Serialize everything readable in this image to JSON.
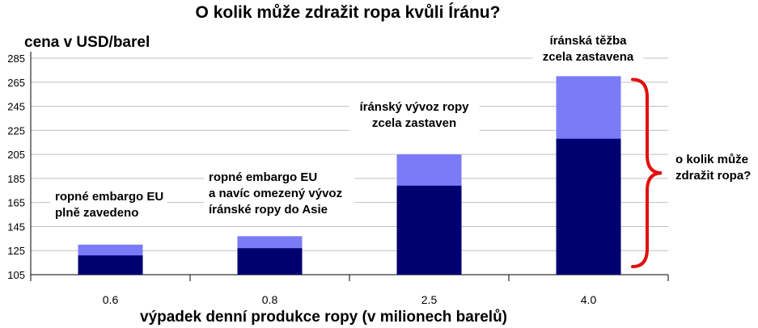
{
  "chart_data": {
    "type": "bar",
    "title": "O kolik může zdražit ropa kvůli Íránu?",
    "ylabel": "cena v USD/barel",
    "xlabel": "výpadek denní produkce ropy (v milionech barelů)",
    "categories": [
      "0.6",
      "0.8",
      "2.5",
      "4.0"
    ],
    "series": [
      {
        "values": [
          121,
          127,
          179,
          218
        ]
      },
      {
        "values": [
          130,
          137,
          205,
          270
        ]
      }
    ],
    "stacked_overlay": true,
    "ylim": [
      105,
      285
    ],
    "yticks": [
      105,
      125,
      145,
      165,
      185,
      205,
      225,
      245,
      265,
      285
    ],
    "grid": true,
    "annotations": [
      {
        "category": "0.6",
        "lines": [
          "ropné embargo EU",
          "plně zavedeno"
        ]
      },
      {
        "category": "0.8",
        "lines": [
          "ropné embargo EU",
          "a navíc omezený vývoz",
          "íránské ropy do Asie"
        ]
      },
      {
        "category": "2.5",
        "lines": [
          "íránský vývoz ropy",
          "zcela zastaven"
        ]
      },
      {
        "category": "4.0",
        "lines": [
          "íránská těžba",
          "zcela zastavena"
        ]
      }
    ],
    "brace_label": [
      "o kolik může",
      "zdražit ropa?"
    ],
    "colors": {
      "lower": "#000070",
      "upper": "#7b7bf7",
      "grid": "#c0c0c0",
      "brace": "#e21010"
    }
  }
}
